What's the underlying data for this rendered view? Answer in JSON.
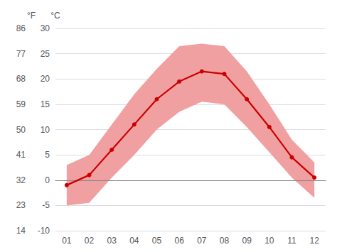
{
  "chart_data": {
    "type": "line",
    "categories": [
      "01",
      "02",
      "03",
      "04",
      "05",
      "06",
      "07",
      "08",
      "09",
      "10",
      "11",
      "12"
    ],
    "series": [
      {
        "type": "band",
        "color": "#f0a0a0",
        "low": [
          -5.0,
          -4.5,
          0.5,
          5.0,
          10.0,
          13.5,
          15.5,
          15.0,
          10.5,
          5.5,
          0.5,
          -3.5
        ],
        "high": [
          3.0,
          5.0,
          11.0,
          17.0,
          22.0,
          26.5,
          27.0,
          26.5,
          21.5,
          15.0,
          8.0,
          3.5
        ]
      },
      {
        "type": "line",
        "color": "#cc0000",
        "marker": "circle",
        "values": [
          -1.0,
          1.0,
          6.0,
          11.0,
          16.0,
          19.5,
          21.5,
          21.0,
          16.0,
          10.5,
          4.5,
          0.5
        ]
      }
    ],
    "ylim": [
      -10,
      30
    ],
    "yticks": [
      -10,
      -5,
      0,
      5,
      10,
      15,
      20,
      25,
      30
    ],
    "ylabel": "°C",
    "y2lim": [
      14,
      86
    ],
    "y2ticks": [
      14,
      23,
      32,
      41,
      50,
      59,
      68,
      77,
      86
    ],
    "y2label": "°F",
    "grid": true,
    "reference_line": {
      "value": 0,
      "color": "#888888"
    }
  }
}
